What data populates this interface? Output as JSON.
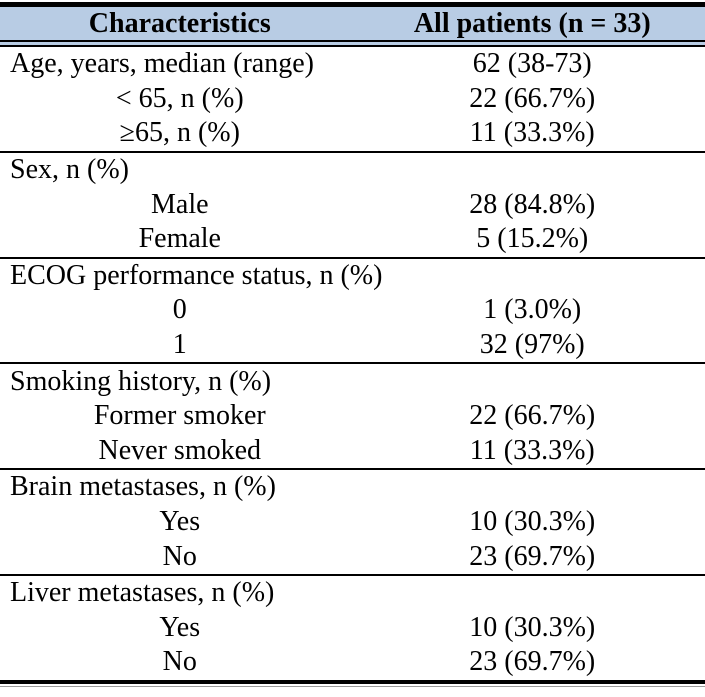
{
  "colors": {
    "header_bg": "#b8cce4",
    "rule": "#000000"
  },
  "table": {
    "header": {
      "col1": "Characteristics",
      "col2": "All patients (n = 33)"
    },
    "sections": [
      {
        "rows": [
          {
            "label": "Age, years, median (range)",
            "value": "62 (38-73)",
            "indent": false
          },
          {
            "label": "< 65, n (%)",
            "value": "22 (66.7%)",
            "indent": true
          },
          {
            "label": "≥65, n (%)",
            "value": "11 (33.3%)",
            "indent": true
          }
        ]
      },
      {
        "rows": [
          {
            "label": "Sex, n (%)",
            "value": "",
            "indent": false
          },
          {
            "label": "Male",
            "value": "28 (84.8%)",
            "indent": true
          },
          {
            "label": "Female",
            "value": "5 (15.2%)",
            "indent": true
          }
        ]
      },
      {
        "rows": [
          {
            "label": "ECOG performance status, n (%)",
            "value": "",
            "indent": false
          },
          {
            "label": "0",
            "value": "1 (3.0%)",
            "indent": true
          },
          {
            "label": "1",
            "value": "32 (97%)",
            "indent": true
          }
        ]
      },
      {
        "rows": [
          {
            "label": "Smoking history, n (%)",
            "value": "",
            "indent": false
          },
          {
            "label": "Former smoker",
            "value": "22 (66.7%)",
            "indent": true
          },
          {
            "label": "Never smoked",
            "value": "11 (33.3%)",
            "indent": true
          }
        ]
      },
      {
        "rows": [
          {
            "label": "Brain metastases, n (%)",
            "value": "",
            "indent": false
          },
          {
            "label": "Yes",
            "value": "10 (30.3%)",
            "indent": true
          },
          {
            "label": "No",
            "value": "23 (69.7%)",
            "indent": true
          }
        ]
      },
      {
        "rows": [
          {
            "label": "Liver metastases, n (%)",
            "value": "",
            "indent": false
          },
          {
            "label": "Yes",
            "value": "10 (30.3%)",
            "indent": true
          },
          {
            "label": "No",
            "value": "23 (69.7%)",
            "indent": true
          }
        ]
      }
    ]
  }
}
